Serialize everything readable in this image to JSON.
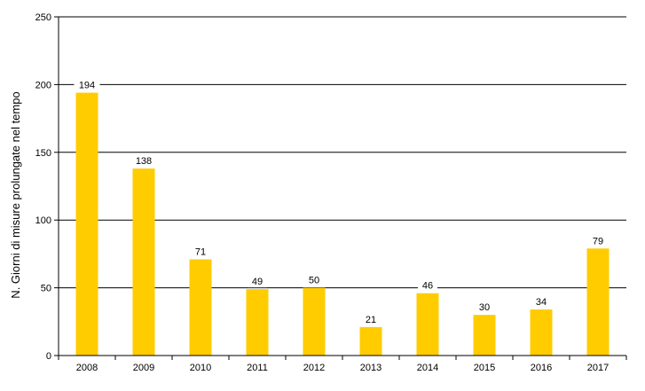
{
  "chart_data": {
    "type": "bar",
    "categories": [
      "2008",
      "2009",
      "2010",
      "2011",
      "2012",
      "2013",
      "2014",
      "2015",
      "2016",
      "2017"
    ],
    "values": [
      194,
      138,
      71,
      49,
      50,
      21,
      46,
      30,
      34,
      79
    ],
    "ylabel": "N. Giorni di misure prolungate  nel tempo",
    "xlabel": "",
    "title": "",
    "ylim": [
      0,
      250
    ],
    "yticks": [
      0,
      50,
      100,
      150,
      200,
      250
    ],
    "grid": true,
    "legend": "none",
    "bar_color": "#FFCC00"
  }
}
